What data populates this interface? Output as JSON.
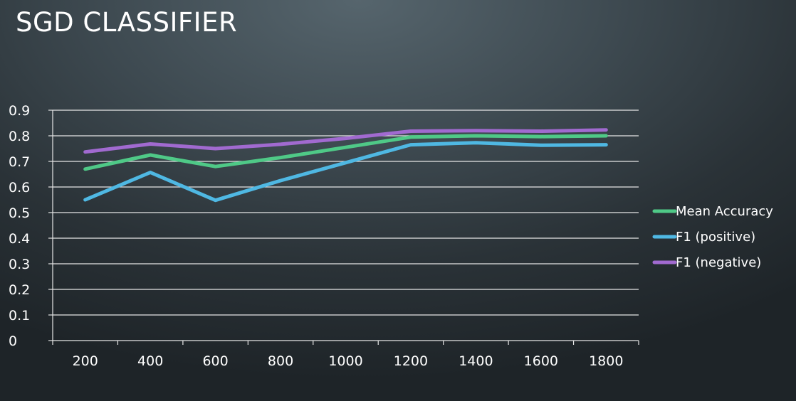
{
  "slide": {
    "title": "SGD CLASSIFIER"
  },
  "chart_data": {
    "type": "line",
    "title": "",
    "xlabel": "",
    "ylabel": "",
    "categories": [
      "200",
      "400",
      "600",
      "800",
      "1000",
      "1200",
      "1400",
      "1600",
      "1800"
    ],
    "ylim": [
      0,
      0.9
    ],
    "yticks": [
      "0",
      "0.1",
      "0.2",
      "0.3",
      "0.4",
      "0.5",
      "0.6",
      "0.7",
      "0.8",
      "0.9"
    ],
    "grid": true,
    "legend_position": "right",
    "series": [
      {
        "name": "Mean Accuracy",
        "color": "#4fc987",
        "values": [
          0.67,
          0.725,
          0.68,
          0.715,
          0.755,
          0.795,
          0.8,
          0.797,
          0.8
        ]
      },
      {
        "name": "F1 (positive)",
        "color": "#4fb8e3",
        "values": [
          0.55,
          0.657,
          0.548,
          0.625,
          0.695,
          0.765,
          0.773,
          0.763,
          0.765
        ]
      },
      {
        "name": "F1 (negative)",
        "color": "#a16ad0",
        "values": [
          0.737,
          0.768,
          0.75,
          0.767,
          0.79,
          0.818,
          0.82,
          0.818,
          0.823
        ]
      }
    ]
  }
}
